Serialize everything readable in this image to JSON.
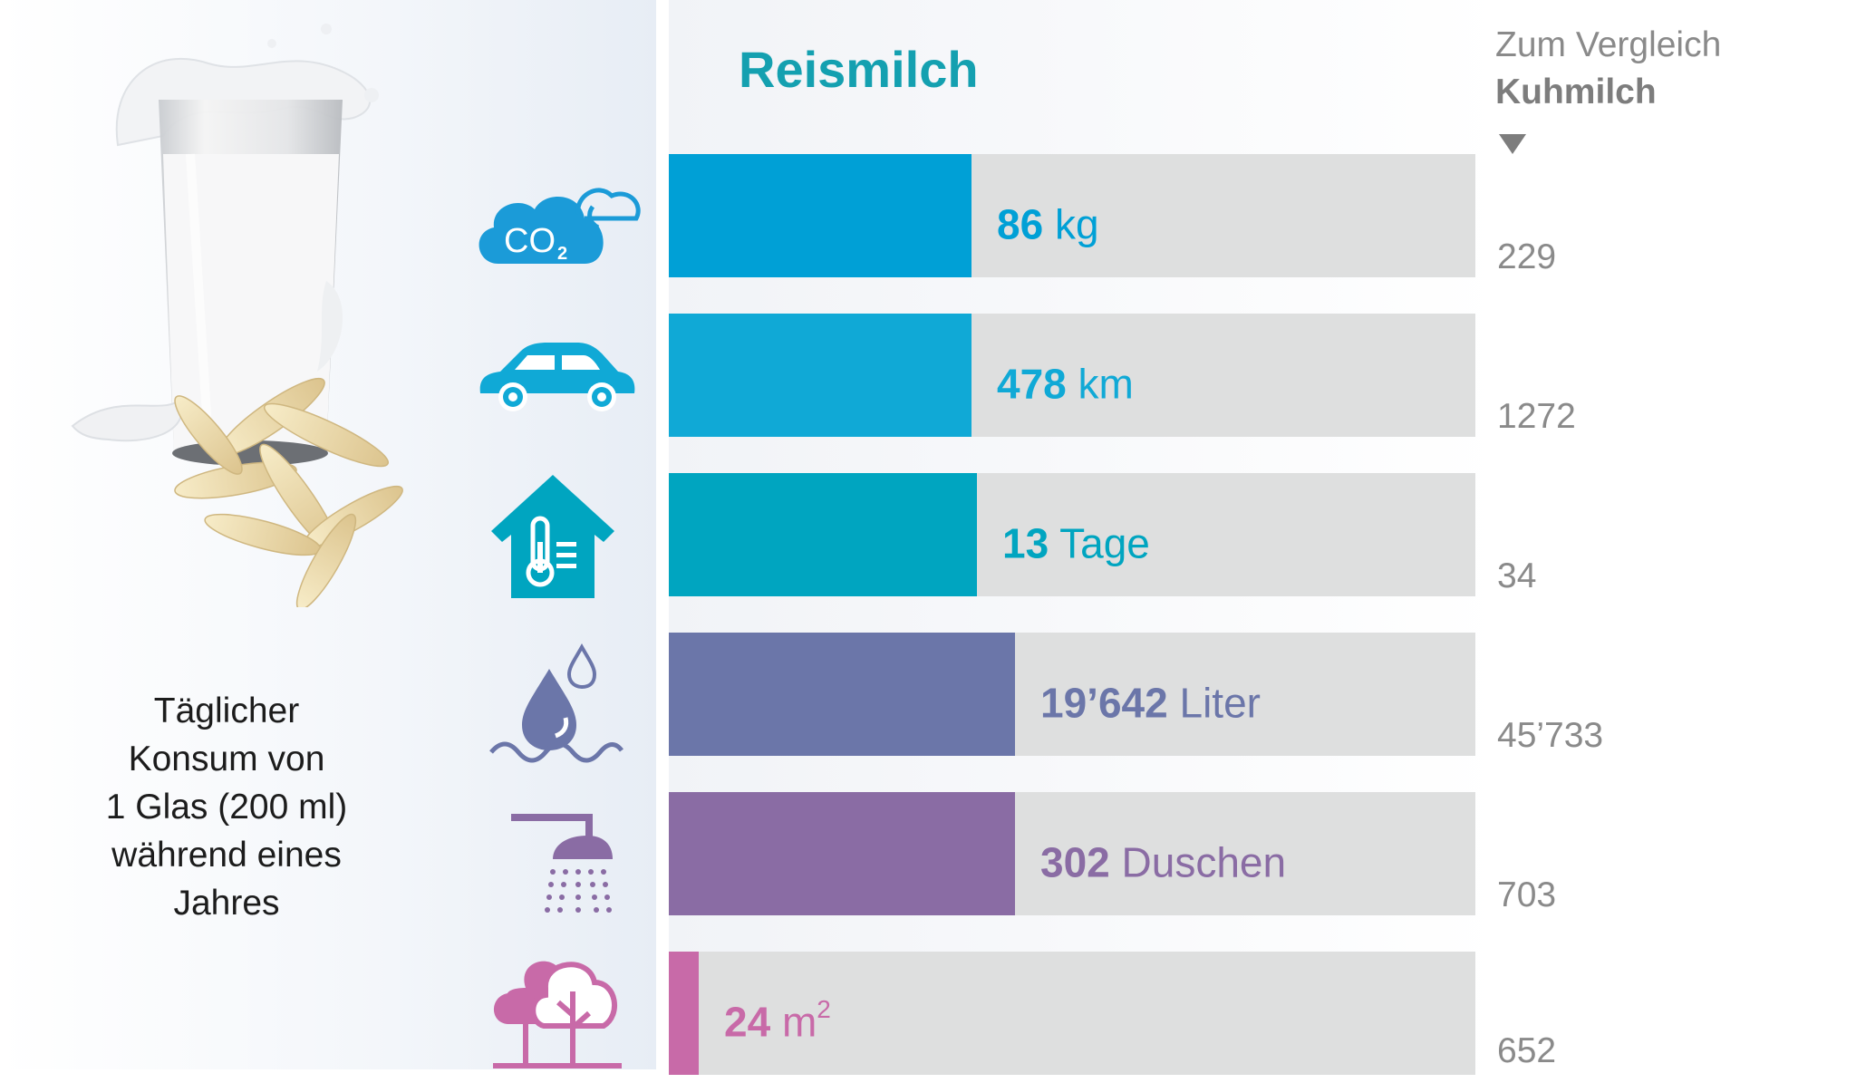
{
  "chart_data": {
    "type": "bar",
    "orientation": "horizontal",
    "title": "Reismilch",
    "comparison_header": {
      "line1": "Zum Vergleich",
      "line2": "Kuhmilch"
    },
    "caption": "Täglicher\nKonsum von\n1 Glas (200 ml)\nwährend eines\nJahres",
    "categories": [
      "CO2",
      "Autokilometer",
      "Heiztage",
      "Wasser",
      "Duschen",
      "Fläche"
    ],
    "series": [
      {
        "name": "Reismilch",
        "values": [
          86,
          478,
          13,
          19642,
          302,
          24
        ]
      },
      {
        "name": "Kuhmilch",
        "values": [
          229,
          1272,
          34,
          45733,
          703,
          652
        ]
      }
    ],
    "rows": [
      {
        "icon": "co2-cloud-icon",
        "value": 86,
        "value_text": "86",
        "unit": "kg",
        "unit_sup": "",
        "compare_text": "229",
        "compare": 229,
        "color": "#00a0d6"
      },
      {
        "icon": "car-icon",
        "value": 478,
        "value_text": "478",
        "unit": "km",
        "unit_sup": "",
        "compare_text": "1272",
        "compare": 1272,
        "color": "#10a9d6"
      },
      {
        "icon": "house-thermometer-icon",
        "value": 13,
        "value_text": "13",
        "unit": "Tage",
        "unit_sup": "",
        "compare_text": "34",
        "compare": 34,
        "color": "#00a5c0"
      },
      {
        "icon": "water-drops-icon",
        "value": 19642,
        "value_text": "19’642",
        "unit": "Liter",
        "unit_sup": "",
        "compare_text": "45’733",
        "compare": 45733,
        "color": "#6b76a9"
      },
      {
        "icon": "shower-icon",
        "value": 302,
        "value_text": "302",
        "unit": "Duschen",
        "unit_sup": "",
        "compare_text": "703",
        "compare": 703,
        "color": "#8a6ca4"
      },
      {
        "icon": "tree-icon",
        "value": 24,
        "value_text": "24",
        "unit": "m",
        "unit_sup": "2",
        "compare_text": "652",
        "compare": 652,
        "color": "#c86aa8"
      }
    ],
    "track_color": "#dedfdf",
    "scale": "each bar relative to Kuhmilch value"
  }
}
